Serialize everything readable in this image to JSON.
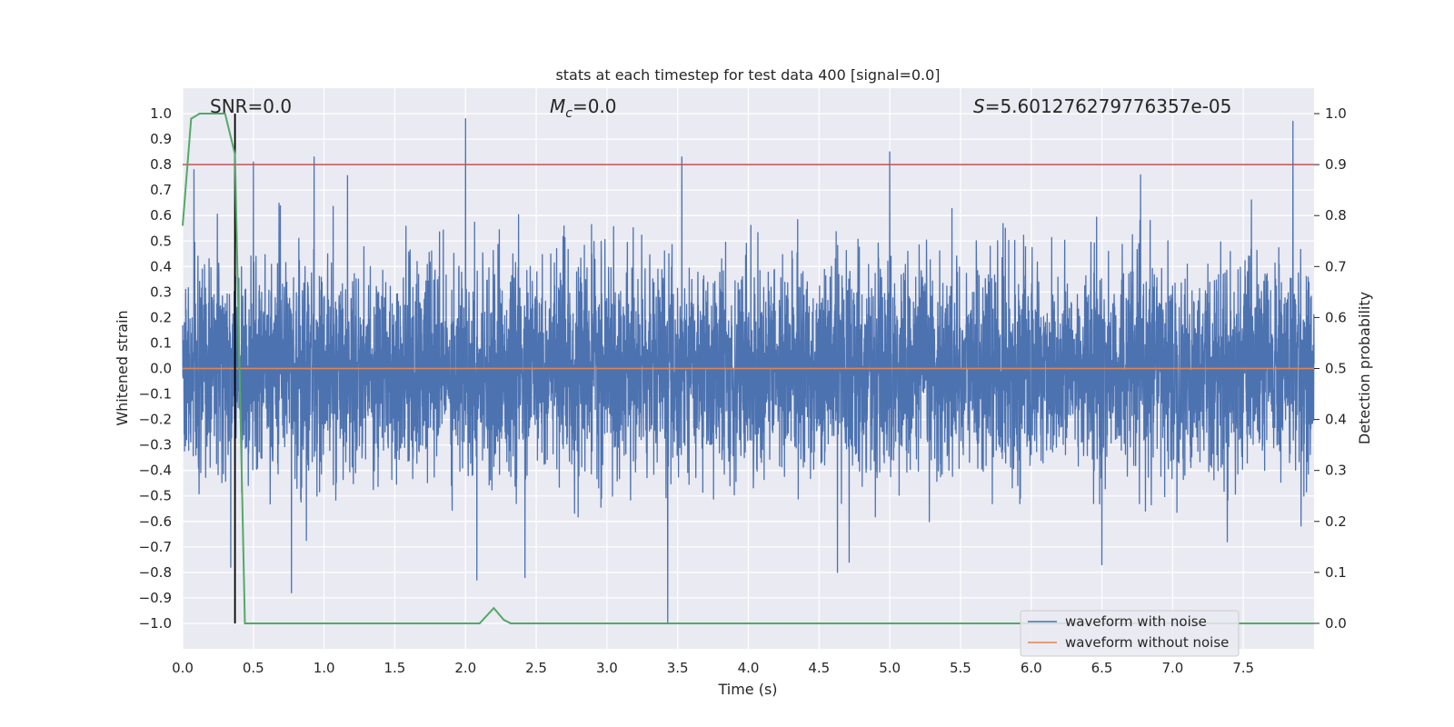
{
  "chart_data": {
    "type": "line",
    "title": "stats at each timestep for test data 400 [signal=0.0]",
    "xlabel": "Time (s)",
    "ylabel": "Whitened strain",
    "ylabel_right": "Detection probability",
    "xlim": [
      0.0,
      8.0
    ],
    "ylim": [
      -1.1,
      1.1
    ],
    "ylim_right": [
      -0.05,
      1.05
    ],
    "x_ticks": [
      "0.0",
      "0.5",
      "1.0",
      "1.5",
      "2.0",
      "2.5",
      "3.0",
      "3.5",
      "4.0",
      "4.5",
      "5.0",
      "5.5",
      "6.0",
      "6.5",
      "7.0",
      "7.5"
    ],
    "y_ticks": [
      "1.0",
      "0.9",
      "0.8",
      "0.7",
      "0.6",
      "0.5",
      "0.4",
      "0.3",
      "0.2",
      "0.1",
      "0.0",
      "−0.1",
      "−0.2",
      "−0.3",
      "−0.4",
      "−0.5",
      "−0.6",
      "−0.7",
      "−0.8",
      "−0.9",
      "−1.0"
    ],
    "y_ticks_right": [
      "1.0",
      "0.9",
      "0.8",
      "0.7",
      "0.6",
      "0.5",
      "0.4",
      "0.3",
      "0.2",
      "0.1",
      "0.0"
    ],
    "annotations": {
      "snr": "SNR=0.0",
      "mc_symbol": "M",
      "mc_sub": "c",
      "mc_value": "=0.0",
      "s_symbol": "S",
      "s_value": "=5.601276279776357e-05"
    },
    "legend": {
      "position": "lower right",
      "entries": [
        {
          "label": "waveform with noise",
          "color": "#4c72b0"
        },
        {
          "label": "waveform without noise",
          "color": "#dd8452"
        }
      ]
    },
    "series": [
      {
        "name": "waveform with noise",
        "color": "#4c72b0",
        "axis": "left",
        "noise_std": 0.2,
        "duration_s": 8.0,
        "peaks": [
          {
            "x": 2.0,
            "y": 0.98
          },
          {
            "x": 7.85,
            "y": 0.97
          },
          {
            "x": 5.0,
            "y": 0.85
          },
          {
            "x": 0.93,
            "y": 0.83
          },
          {
            "x": 0.5,
            "y": 0.81
          },
          {
            "x": 3.53,
            "y": 0.83
          },
          {
            "x": 0.08,
            "y": 0.78
          },
          {
            "x": 3.43,
            "y": -1.0
          },
          {
            "x": 0.77,
            "y": -0.88
          },
          {
            "x": 2.08,
            "y": -0.83
          },
          {
            "x": 2.42,
            "y": -0.82
          },
          {
            "x": 0.34,
            "y": -0.78
          },
          {
            "x": 4.63,
            "y": -0.8
          },
          {
            "x": 6.5,
            "y": -0.77
          }
        ]
      },
      {
        "name": "waveform without noise",
        "color": "#dd8452",
        "axis": "left",
        "x": [
          0.0,
          8.0
        ],
        "y": [
          0.0,
          0.0
        ]
      },
      {
        "name": "detection probability",
        "color": "#55a868",
        "axis": "right",
        "x": [
          0.0,
          0.06,
          0.12,
          0.18,
          0.24,
          0.3,
          0.37,
          0.44,
          0.5,
          1.0,
          2.0,
          2.1,
          2.2,
          2.27,
          2.32,
          2.4,
          3.0,
          8.0
        ],
        "y": [
          0.78,
          0.99,
          1.0,
          1.0,
          1.0,
          1.0,
          0.92,
          0.0,
          0.0,
          0.0,
          0.0,
          0.0,
          0.03,
          0.007,
          0.0,
          0.0,
          0.0,
          0.0
        ]
      }
    ],
    "threshold_line": {
      "axis": "right",
      "y": 0.9,
      "color": "#c44e52"
    },
    "marker_line": {
      "x": 0.37,
      "y_range": [
        -1.0,
        1.0
      ],
      "color": "#000000"
    }
  }
}
